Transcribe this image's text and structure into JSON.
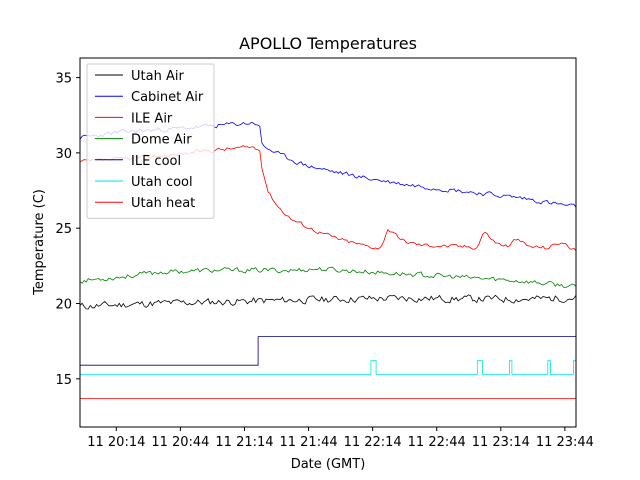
{
  "chart_data": {
    "type": "line",
    "title": "APOLLO Temperatures",
    "xlabel": "Date (GMT)",
    "ylabel": "Temperature (C)",
    "xlim": [
      19.95,
      23.82
    ],
    "ylim": [
      11.8,
      36.3
    ],
    "x_ticks": [
      {
        "value": 20.2333,
        "label": "11 20:14"
      },
      {
        "value": 20.7333,
        "label": "11 20:44"
      },
      {
        "value": 21.2333,
        "label": "11 21:14"
      },
      {
        "value": 21.7333,
        "label": "11 21:44"
      },
      {
        "value": 22.2333,
        "label": "11 22:14"
      },
      {
        "value": 22.7333,
        "label": "11 22:44"
      },
      {
        "value": 23.2333,
        "label": "11 23:14"
      },
      {
        "value": 23.7333,
        "label": "11 23:44"
      }
    ],
    "y_ticks": [
      {
        "value": 15,
        "label": "15"
      },
      {
        "value": 20,
        "label": "20"
      },
      {
        "value": 25,
        "label": "25"
      },
      {
        "value": 30,
        "label": "30"
      },
      {
        "value": 35,
        "label": "35"
      }
    ],
    "legend_position": "top-left",
    "series": [
      {
        "name": "Utah Air",
        "color": "#000000",
        "noise": 0.22,
        "seed": 11,
        "points": [
          [
            19.95,
            19.8
          ],
          [
            20.5,
            20.0
          ],
          [
            21.0,
            20.1
          ],
          [
            21.5,
            20.2
          ],
          [
            22.0,
            20.3
          ],
          [
            22.5,
            20.35
          ],
          [
            23.0,
            20.3
          ],
          [
            23.5,
            20.3
          ],
          [
            23.82,
            20.4
          ]
        ]
      },
      {
        "name": "Cabinet Air",
        "color": "#0000ff",
        "noise": 0.14,
        "seed": 23,
        "points": [
          [
            19.95,
            31.0
          ],
          [
            20.3,
            31.4
          ],
          [
            20.7,
            31.6
          ],
          [
            21.0,
            31.8
          ],
          [
            21.3,
            32.0
          ],
          [
            21.35,
            31.9
          ],
          [
            21.37,
            30.5
          ],
          [
            21.5,
            29.9
          ],
          [
            21.7,
            29.2
          ],
          [
            21.9,
            28.8
          ],
          [
            22.2,
            28.3
          ],
          [
            22.5,
            27.9
          ],
          [
            22.8,
            27.6
          ],
          [
            23.1,
            27.3
          ],
          [
            23.4,
            27.0
          ],
          [
            23.6,
            26.7
          ],
          [
            23.82,
            26.4
          ]
        ]
      },
      {
        "name": "ILE Air",
        "color": "#ff0000",
        "noise": 0.12,
        "seed": 37,
        "points": [
          [
            19.95,
            29.4
          ],
          [
            20.3,
            29.6
          ],
          [
            20.7,
            29.9
          ],
          [
            21.0,
            30.2
          ],
          [
            21.3,
            30.4
          ],
          [
            21.35,
            30.2
          ],
          [
            21.37,
            29.0
          ],
          [
            21.42,
            27.4
          ],
          [
            21.5,
            26.4
          ],
          [
            21.6,
            25.6
          ],
          [
            21.8,
            24.8
          ],
          [
            22.0,
            24.2
          ],
          [
            22.2,
            23.8
          ],
          [
            22.3,
            23.7
          ],
          [
            22.35,
            25.0
          ],
          [
            22.45,
            24.2
          ],
          [
            22.6,
            23.9
          ],
          [
            22.9,
            23.8
          ],
          [
            23.05,
            23.75
          ],
          [
            23.1,
            24.8
          ],
          [
            23.2,
            24.0
          ],
          [
            23.3,
            23.8
          ],
          [
            23.35,
            24.3
          ],
          [
            23.45,
            23.8
          ],
          [
            23.6,
            23.7
          ],
          [
            23.7,
            24.1
          ],
          [
            23.82,
            23.5
          ]
        ]
      },
      {
        "name": "Dome Air",
        "color": "#008000",
        "noise": 0.15,
        "seed": 53,
        "points": [
          [
            19.95,
            21.5
          ],
          [
            20.3,
            21.8
          ],
          [
            20.6,
            22.1
          ],
          [
            21.0,
            22.2
          ],
          [
            21.4,
            22.2
          ],
          [
            21.6,
            22.2
          ],
          [
            21.8,
            22.3
          ],
          [
            22.2,
            22.1
          ],
          [
            22.6,
            21.9
          ],
          [
            23.0,
            21.7
          ],
          [
            23.4,
            21.5
          ],
          [
            23.82,
            21.1
          ]
        ]
      },
      {
        "name": "ILE cool",
        "color": "#000080",
        "noise": 0,
        "seed": 0,
        "points": [
          [
            19.95,
            15.9
          ],
          [
            21.34,
            15.9
          ],
          [
            21.34,
            17.8
          ],
          [
            23.82,
            17.8
          ]
        ]
      },
      {
        "name": "Utah cool",
        "color": "#00e5e5",
        "noise": 0,
        "seed": 0,
        "points": [
          [
            19.95,
            15.3
          ],
          [
            22.22,
            15.3
          ],
          [
            22.22,
            16.2
          ],
          [
            22.26,
            16.2
          ],
          [
            22.26,
            15.3
          ],
          [
            23.05,
            15.3
          ],
          [
            23.05,
            16.2
          ],
          [
            23.09,
            16.2
          ],
          [
            23.09,
            15.3
          ],
          [
            23.3,
            15.3
          ],
          [
            23.3,
            16.2
          ],
          [
            23.32,
            16.2
          ],
          [
            23.32,
            15.3
          ],
          [
            23.6,
            15.3
          ],
          [
            23.6,
            16.2
          ],
          [
            23.62,
            16.2
          ],
          [
            23.62,
            15.3
          ],
          [
            23.8,
            15.3
          ],
          [
            23.8,
            16.2
          ],
          [
            23.82,
            16.2
          ]
        ]
      },
      {
        "name": "Utah heat",
        "color": "#ff0000",
        "noise": 0,
        "seed": 0,
        "points": [
          [
            19.95,
            13.7
          ],
          [
            23.82,
            13.7
          ]
        ]
      }
    ]
  }
}
